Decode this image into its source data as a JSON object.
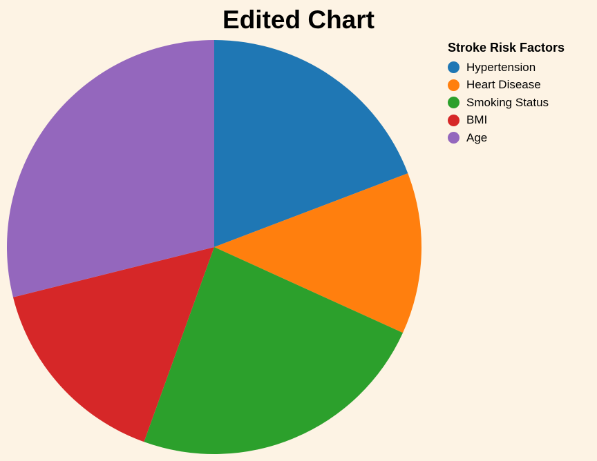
{
  "chart_data": {
    "type": "pie",
    "title": "Edited Chart",
    "legend_title": "Stroke Risk Factors",
    "legend_position": "top-right",
    "categories": [
      "Hypertension",
      "Heart Disease",
      "Smoking Status",
      "BMI",
      "Age"
    ],
    "values": [
      19.2,
      12.6,
      23.7,
      15.6,
      28.9
    ],
    "colors": [
      "#1f77b4",
      "#ff7f0e",
      "#2ca02c",
      "#d62728",
      "#9467bd"
    ]
  }
}
